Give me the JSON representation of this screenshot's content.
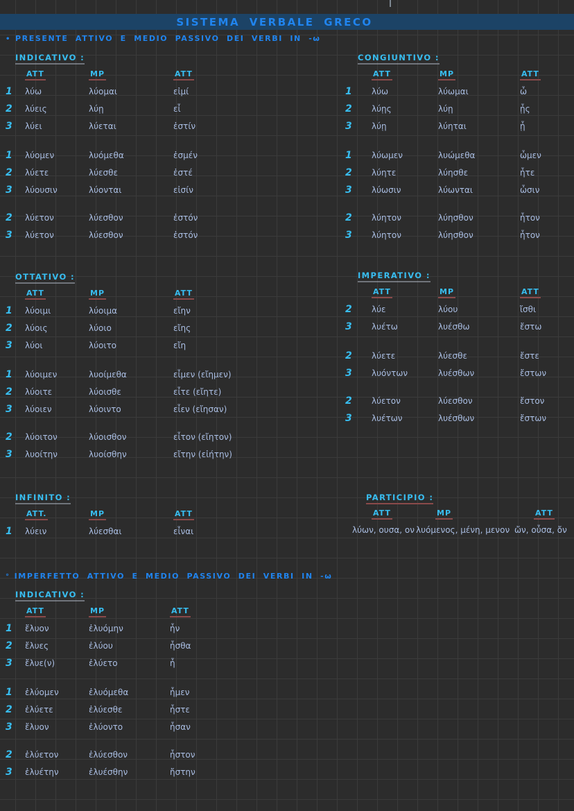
{
  "colors": {
    "bg": "#2c2c2c",
    "grid": "#3b3b3b",
    "band": "#1c4366",
    "blue": "#2084ee",
    "cyan": "#38bdf0",
    "ink": "#a9bde2",
    "red": "#8a4a4a"
  },
  "page": {
    "title": "SISTEMA VERBALE GRECO",
    "section1_bullet": "•",
    "section1_title": "PRESENTE ATTIVO E MEDIO PASSIVO DEI VERBI IN -ω",
    "section2_bullet": "°",
    "section2_title": "IMPERFETTO ATTIVO E MEDIO PASSIVO DEI VERBI IN -ω"
  },
  "tables": {
    "indicativo_presente": {
      "label": "INDICATIVO :",
      "cols": [
        "ATT",
        "MP",
        "ATT"
      ],
      "groups": [
        [
          {
            "p": "1",
            "c": [
              "λύω",
              "λύομαι",
              "εἰμί"
            ]
          },
          {
            "p": "2",
            "c": [
              "λύεις",
              "λύῃ",
              "εἶ"
            ]
          },
          {
            "p": "3",
            "c": [
              "λύει",
              "λύεται",
              "ἐστίν"
            ]
          }
        ],
        [
          {
            "p": "1",
            "c": [
              "λύομεν",
              "λυόμεθα",
              "ἐσμέν"
            ]
          },
          {
            "p": "2",
            "c": [
              "λύετε",
              "λύεσθε",
              "ἐστέ"
            ]
          },
          {
            "p": "3",
            "c": [
              "λύουσιν",
              "λύονται",
              "εἰσίν"
            ]
          }
        ],
        [
          {
            "p": "2",
            "c": [
              "λύετον",
              "λύεσθον",
              "ἐστόν"
            ]
          },
          {
            "p": "3",
            "c": [
              "λύετον",
              "λύεσθον",
              "ἐστόν"
            ]
          }
        ]
      ]
    },
    "congiuntivo": {
      "label": "CONGIUNTIVO :",
      "cols": [
        "ATT",
        "MP",
        "ATT"
      ],
      "groups": [
        [
          {
            "p": "1",
            "c": [
              "λύω",
              "λύωμαι",
              "ὦ"
            ]
          },
          {
            "p": "2",
            "c": [
              "λύῃς",
              "λύῃ",
              "ᾖς"
            ]
          },
          {
            "p": "3",
            "c": [
              "λύῃ",
              "λύηται",
              "ᾖ"
            ]
          }
        ],
        [
          {
            "p": "1",
            "c": [
              "λύωμεν",
              "λυώμεθα",
              "ὦμεν"
            ]
          },
          {
            "p": "2",
            "c": [
              "λύητε",
              "λύησθε",
              "ἦτε"
            ]
          },
          {
            "p": "3",
            "c": [
              "λύωσιν",
              "λύωνται",
              "ὦσιν"
            ]
          }
        ],
        [
          {
            "p": "2",
            "c": [
              "λύητον",
              "λύησθον",
              "ἦτον"
            ]
          },
          {
            "p": "3",
            "c": [
              "λύητον",
              "λύησθον",
              "ἦτον"
            ]
          }
        ]
      ]
    },
    "ottativo": {
      "label": "OTTATIVO :",
      "cols": [
        "ATT",
        "MP",
        "ATT"
      ],
      "groups": [
        [
          {
            "p": "1",
            "c": [
              "λύοιμι",
              "λύοιμα",
              "εἴην"
            ]
          },
          {
            "p": "2",
            "c": [
              "λύοις",
              "λύοιο",
              "εἴης"
            ]
          },
          {
            "p": "3",
            "c": [
              "λύοι",
              "λύοιτο",
              "εἴη"
            ]
          }
        ],
        [
          {
            "p": "1",
            "c": [
              "λύοιμεν",
              "λυοίμεθα",
              "εἶμεν (εἴημεν)"
            ]
          },
          {
            "p": "2",
            "c": [
              "λύοιτε",
              "λύοισθε",
              "εἶτε (εἴητε)"
            ]
          },
          {
            "p": "3",
            "c": [
              "λύοιεν",
              "λύοιντο",
              "εἶεν (εἴησαν)"
            ]
          }
        ],
        [
          {
            "p": "2",
            "c": [
              "λύοιτον",
              "λύοισθον",
              "εἶτον (εἴητον)"
            ]
          },
          {
            "p": "3",
            "c": [
              "λυοίτην",
              "λυοίσθην",
              "εἴτην (εἰήτην)"
            ]
          }
        ]
      ]
    },
    "imperativo": {
      "label": "IMPERATIVO :",
      "cols": [
        "ATT",
        "MP",
        "ATT"
      ],
      "groups": [
        [
          {
            "p": "2",
            "c": [
              "λύε",
              "λύου",
              "ἴσθι"
            ]
          },
          {
            "p": "3",
            "c": [
              "λυέτω",
              "λυέσθω",
              "ἔστω"
            ]
          }
        ],
        [
          {
            "p": "2",
            "c": [
              "λύετε",
              "λύεσθε",
              "ἔστε"
            ]
          },
          {
            "p": "3",
            "c": [
              "λυόντων",
              "λυέσθων",
              "ἔστων"
            ]
          }
        ],
        [
          {
            "p": "2",
            "c": [
              "λύετον",
              "λύεσθον",
              "ἔστον"
            ]
          },
          {
            "p": "3",
            "c": [
              "λυέτων",
              "λυέσθων",
              "ἔστων"
            ]
          }
        ]
      ]
    },
    "infinito": {
      "label": "INFINITO :",
      "cols": [
        "ATT.",
        "MP",
        "ATT"
      ],
      "groups": [
        [
          {
            "p": "1",
            "c": [
              "λύειν",
              "λύεσθαι",
              "εἶναι"
            ]
          }
        ]
      ]
    },
    "participio": {
      "label": "PARTICIPIO :",
      "cols": [
        "ATT",
        "MP",
        "ATT"
      ],
      "person_col": false,
      "groups": [
        [
          {
            "p": "",
            "c": [
              "λύων, ουσα, ον",
              "λυόμενος, μένη, μενον",
              "ὤν, οὖσα, ὄν"
            ]
          }
        ]
      ]
    },
    "indicativo_imperfetto": {
      "label": "INDICATIVO :",
      "cols": [
        "ATT",
        "MP",
        "ATT"
      ],
      "groups": [
        [
          {
            "p": "1",
            "c": [
              "ἔλυον",
              "ἐλυόμην",
              "ἦν"
            ]
          },
          {
            "p": "2",
            "c": [
              "ἔλυες",
              "ἐλύου",
              "ἦσθα"
            ]
          },
          {
            "p": "3",
            "c": [
              "ἔλυε(ν)",
              "ἐλύετο",
              "ἦ"
            ]
          }
        ],
        [
          {
            "p": "1",
            "c": [
              "ἐλύομεν",
              "ἐλυόμεθα",
              "ἦμεν"
            ]
          },
          {
            "p": "2",
            "c": [
              "ἐλύετε",
              "ἐλύεσθε",
              "ἦστε"
            ]
          },
          {
            "p": "3",
            "c": [
              "ἔλυον",
              "ἐλύοντο",
              "ἦσαν"
            ]
          }
        ],
        [
          {
            "p": "2",
            "c": [
              "ἐλύετον",
              "ἐλύεσθον",
              "ἦστον"
            ]
          },
          {
            "p": "3",
            "c": [
              "ἐλυέτην",
              "ἐλυέσθην",
              "ἤστην"
            ]
          }
        ]
      ]
    }
  }
}
